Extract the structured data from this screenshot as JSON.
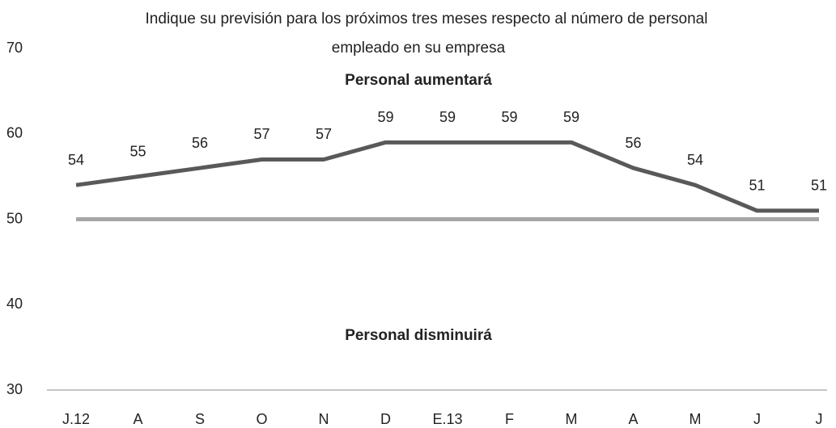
{
  "chart_data": {
    "type": "line",
    "title": [
      "Indique su previsión para los próximos tres meses respecto al número de personal",
      "empleado en su empresa"
    ],
    "annotations": [
      "Personal aumentará",
      "Personal disminuirá"
    ],
    "categories": [
      "J.12",
      "A",
      "S",
      "O",
      "N",
      "D",
      "E.13",
      "F",
      "M",
      "A",
      "M",
      "J",
      "J"
    ],
    "series": [
      {
        "color": "#595959",
        "values": [
          54,
          55,
          56,
          57,
          57,
          59,
          59,
          59,
          59,
          56,
          54,
          51,
          51
        ]
      }
    ],
    "reference_line": {
      "value": 50,
      "color": "#a6a6a6"
    },
    "ylim": [
      30,
      70
    ],
    "yticks": [
      30,
      40,
      50,
      60,
      70
    ],
    "grid": false
  }
}
